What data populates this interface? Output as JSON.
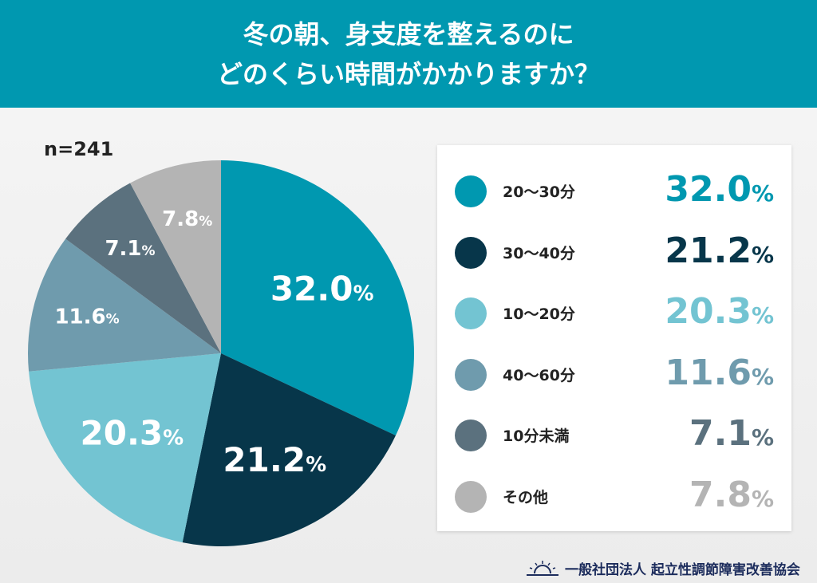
{
  "header": {
    "line1": "冬の朝、身支度を整えるのに",
    "line2": "どのくらい時間がかかりますか？"
  },
  "sample": "n=241",
  "chart_data": {
    "type": "pie",
    "title": "冬の朝、身支度を整えるのにどのくらい時間がかかりますか？",
    "start": "top",
    "direction": "clockwise",
    "categories": [
      "20〜30分",
      "30〜40分",
      "10〜20分",
      "40〜60分",
      "10分未満",
      "その他"
    ],
    "values": [
      32.0,
      21.2,
      20.3,
      11.6,
      7.1,
      7.8
    ],
    "labels": [
      "32.0",
      "21.2",
      "20.3",
      "11.6",
      "7.1",
      "7.8"
    ],
    "unit": "%",
    "colors": [
      "#0098b0",
      "#07364a",
      "#73c4d2",
      "#6f9bad",
      "#5b717e",
      "#b4b4b4"
    ],
    "legend": "right"
  },
  "footer": {
    "org": "一般社団法人 起立性調節障害改善協会",
    "logo": "sunrise-icon"
  }
}
